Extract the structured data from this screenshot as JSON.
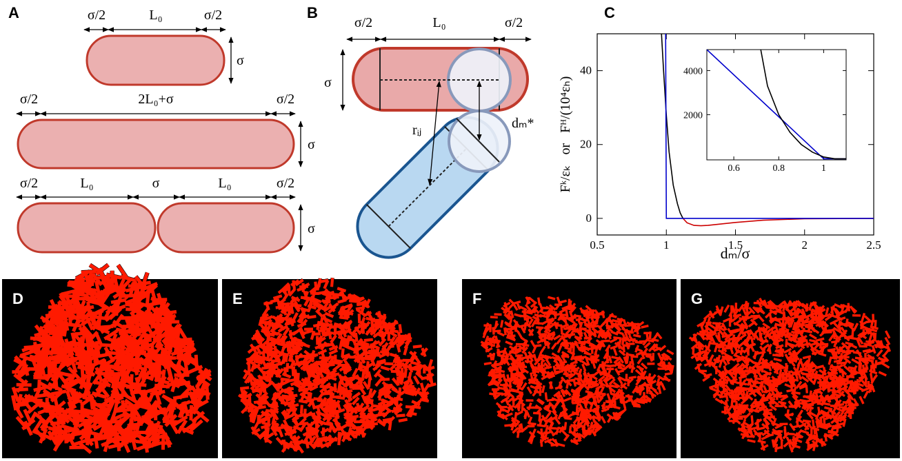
{
  "panel_labels": [
    "A",
    "B",
    "C",
    "D",
    "E",
    "F",
    "G"
  ],
  "diagram_a": {
    "row1": [
      "σ/2",
      "L₀",
      "σ/2",
      "σ"
    ],
    "row2": [
      "σ/2",
      "2L₀+σ",
      "σ/2",
      "σ"
    ],
    "row3": [
      "σ/2",
      "L₀",
      "σ",
      "L₀",
      "σ/2",
      "σ"
    ]
  },
  "diagram_b": {
    "labels": [
      "σ/2",
      "L₀",
      "σ/2",
      "σ",
      "rᵢⱼ",
      "dₘ*"
    ]
  },
  "chart_data": [
    {
      "type": "line",
      "x_label": "dₘ/σ",
      "y_label": "Fᵏ/εₖ   or   Fᴴ/(10⁴εₕ)",
      "xlim": [
        0.5,
        2.5
      ],
      "ylim": [
        -4.5,
        50
      ],
      "xticks": [
        0.5,
        1,
        1.5,
        2,
        2.5
      ],
      "yticks": [
        0,
        20,
        40
      ],
      "series": [
        {
          "color": "#000000",
          "x": [
            0.965,
            0.98,
            1.0,
            1.02,
            1.05,
            1.08,
            1.1,
            1.12
          ],
          "values": [
            50,
            40,
            28,
            18,
            9,
            4,
            1.5,
            0
          ]
        },
        {
          "color": "#cc0000",
          "x": [
            1.12,
            1.15,
            1.2,
            1.25,
            1.3,
            1.4,
            1.5,
            1.7,
            2.0,
            2.5
          ],
          "values": [
            0,
            -1.2,
            -1.9,
            -2,
            -1.9,
            -1.5,
            -1.1,
            -0.5,
            -0.1,
            0
          ]
        },
        {
          "color": "#0000cc",
          "x": [
            0.995,
            1.0,
            2.5
          ],
          "values": [
            50,
            0,
            0
          ]
        }
      ]
    },
    {
      "type": "line",
      "xlim": [
        0.48,
        1.1
      ],
      "ylim": [
        -50,
        4950
      ],
      "xticks": [
        0.6,
        0.8,
        1
      ],
      "yticks": [
        2000,
        4000
      ],
      "series": [
        {
          "color": "#0000cc",
          "x": [
            0.48,
            1.0,
            1.1
          ],
          "values": [
            4950,
            0,
            0
          ]
        },
        {
          "color": "#000000",
          "x": [
            0.72,
            0.75,
            0.8,
            0.85,
            0.9,
            0.95,
            1.0,
            1.05,
            1.1
          ],
          "values": [
            4950,
            3300,
            2000,
            1200,
            650,
            300,
            80,
            0,
            0
          ]
        }
      ]
    }
  ]
}
